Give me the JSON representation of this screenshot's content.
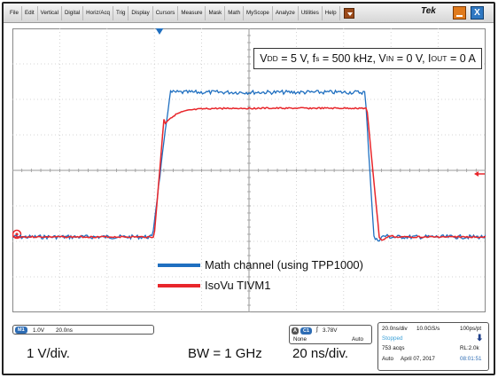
{
  "menubar": {
    "items": [
      "File",
      "Edit",
      "Vertical",
      "Digital",
      "Horiz/Acq",
      "Trig",
      "Display",
      "Cursors",
      "Measure",
      "Mask",
      "Math",
      "MyScope",
      "Analyze",
      "Utilities",
      "Help"
    ],
    "brand": "Tek",
    "close_glyph": "X"
  },
  "annotation": {
    "vdd_main": "V",
    "vdd_sub": "DD",
    "vdd_rest": " = 5 V, f",
    "fs_sub": "s",
    "fs_rest": " = 500 kHz, V",
    "vin_sub": "IN",
    "vin_rest": " = 0 V, I",
    "iout_sub": "OUT",
    "iout_rest": " = 0 A"
  },
  "legend": [
    {
      "label": "Math channel (using TPP1000)",
      "color": "#1f6fc0"
    },
    {
      "label": "IsoVu TIVM1",
      "color": "#e8262b"
    }
  ],
  "status": {
    "math_chip": "M1",
    "math_scale": "1.0V",
    "math_time": "20.0ns",
    "trig_a": "A",
    "trig_ch": "C1",
    "trig_level": "3.78V",
    "trig_coupling": "None",
    "trig_mode": "Auto",
    "timebase": "20.0ns/div",
    "sample_rate": "10.0GS/s",
    "pt_res": "100ps/pt",
    "acq_state": "Stopped",
    "acqs": "753 acqs",
    "record_length": "RL:2.0k",
    "acq_mode": "Auto",
    "date": "April 07, 2017",
    "time": "08:01:51"
  },
  "captions": {
    "vdiv": "1 V/div.",
    "bw": "BW = 1 GHz",
    "tdiv": "20 ns/div."
  },
  "colors": {
    "blue_trace": "#1f6fc0",
    "red_trace": "#e8262b",
    "trigger_marker": "#e8262b",
    "math_chip": "#2d6cb4",
    "trig_chip": "#2d6cb4",
    "stopped": "#3aa0d8",
    "clock": "#2d6cb4"
  }
}
